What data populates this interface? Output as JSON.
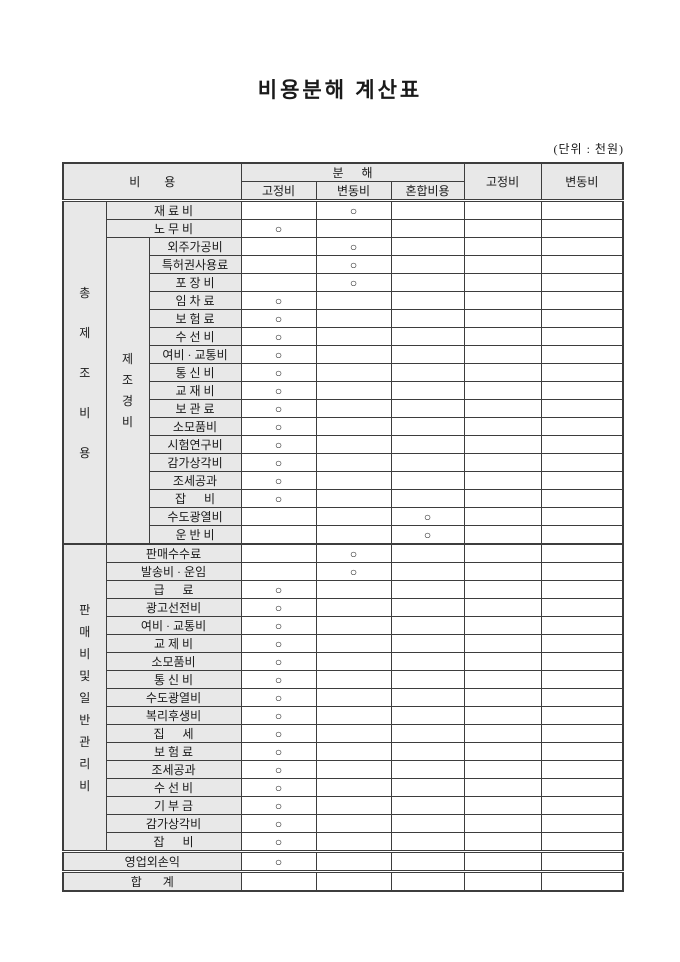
{
  "page": {
    "title": "비용분해 계산표",
    "unit_note": "(단위 : 천원)"
  },
  "table": {
    "mark_symbol": "○",
    "header": {
      "cost": "비        용",
      "decomposition": "분      해",
      "fixed": "고정비",
      "variable": "변동비",
      "mixed": "혼합비용",
      "fixed_amount": "고정비",
      "variable_amount": "변동비"
    },
    "sections": [
      {
        "id": "total-manufacturing",
        "vertical_label": "총제조비용",
        "divider": "double",
        "rows": [
          {
            "name": "재 료 비",
            "mark": "variable"
          },
          {
            "name": "노 무 비",
            "mark": "fixed"
          }
        ],
        "subgroup": {
          "id": "manufacturing-overhead",
          "vertical_label": "제조경비",
          "rows": [
            {
              "name": "외주가공비",
              "mark": "variable"
            },
            {
              "name": "특허권사용료",
              "mark": "variable"
            },
            {
              "name": "포 장 비",
              "mark": "variable"
            },
            {
              "name": "임 차 료",
              "mark": "fixed"
            },
            {
              "name": "보 험 료",
              "mark": "fixed"
            },
            {
              "name": "수 선 비",
              "mark": "fixed"
            },
            {
              "name": "여비 · 교통비",
              "mark": "fixed"
            },
            {
              "name": "통 신 비",
              "mark": "fixed"
            },
            {
              "name": "교 재 비",
              "mark": "fixed"
            },
            {
              "name": "보 관 료",
              "mark": "fixed"
            },
            {
              "name": "소모품비",
              "mark": "fixed"
            },
            {
              "name": "시험연구비",
              "mark": "fixed"
            },
            {
              "name": "감가상각비",
              "mark": "fixed"
            },
            {
              "name": "조세공과",
              "mark": "fixed"
            },
            {
              "name": "잡      비",
              "mark": "fixed"
            },
            {
              "name": "수도광열비",
              "mark": "mixed"
            },
            {
              "name": "운 반 비",
              "mark": "mixed"
            }
          ]
        }
      },
      {
        "id": "selling-admin",
        "vertical_label": "판매비및일반관리비",
        "divider": "thick",
        "rows": [
          {
            "name": "판매수수료",
            "mark": "variable"
          },
          {
            "name": "발송비 · 운임",
            "mark": "variable"
          },
          {
            "name": "급      료",
            "mark": "fixed"
          },
          {
            "name": "광고선전비",
            "mark": "fixed"
          },
          {
            "name": "여비 · 교통비",
            "mark": "fixed"
          },
          {
            "name": "교 제 비",
            "mark": "fixed"
          },
          {
            "name": "소모품비",
            "mark": "fixed"
          },
          {
            "name": "통 신 비",
            "mark": "fixed"
          },
          {
            "name": "수도광열비",
            "mark": "fixed"
          },
          {
            "name": "복리후생비",
            "mark": "fixed"
          },
          {
            "name": "집      세",
            "mark": "fixed"
          },
          {
            "name": "보 험 료",
            "mark": "fixed"
          },
          {
            "name": "조세공과",
            "mark": "fixed"
          },
          {
            "name": "수 선 비",
            "mark": "fixed"
          },
          {
            "name": "기 부 금",
            "mark": "fixed"
          },
          {
            "name": "감가상각비",
            "mark": "fixed"
          },
          {
            "name": "잡      비",
            "mark": "fixed"
          }
        ],
        "subgroup": null
      },
      {
        "id": "non-operating",
        "divider": "double",
        "row": {
          "name": "영업외손익",
          "mark": "fixed"
        }
      },
      {
        "id": "total",
        "divider": "double",
        "row": {
          "name": "합       계",
          "mark": null
        }
      }
    ],
    "colors": {
      "label_background": "#e8e8e8",
      "border": "#3d3d3d"
    }
  }
}
